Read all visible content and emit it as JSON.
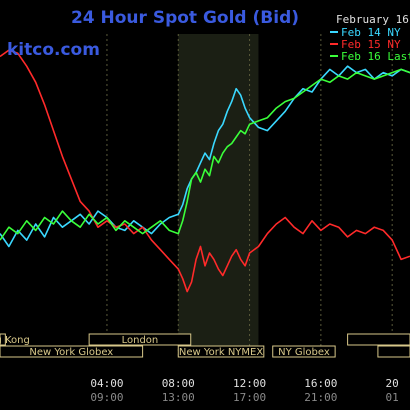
{
  "chart_data": {
    "type": "line",
    "title": "24 Hour Spot Gold (Bid)",
    "watermark": "kitco.com",
    "date_label": "February 16",
    "legend_position": "top-right",
    "x_ticks": [
      {
        "x": 4,
        "label": "04:00",
        "sublabel": "09:00"
      },
      {
        "x": 8,
        "label": "08:00",
        "sublabel": "13:00"
      },
      {
        "x": 12,
        "label": "12:00",
        "sublabel": "17:00"
      },
      {
        "x": 16,
        "label": "16:00",
        "sublabel": "21:00"
      },
      {
        "x": 20,
        "label": "20",
        "sublabel": "01"
      }
    ],
    "xlim": [
      -2,
      21
    ],
    "ylim": [
      0,
      100
    ],
    "shaded_range": [
      8,
      12.5
    ],
    "sessions": [
      {
        "label": "Hong Kong",
        "start": -2,
        "end": -1.7,
        "row": 1
      },
      {
        "label": "New York Globex",
        "start": -2,
        "end": 6,
        "row": 2
      },
      {
        "label": "London",
        "start": 3,
        "end": 8.7,
        "row": 1
      },
      {
        "label": "New York NYMEX",
        "start": 8,
        "end": 12.8,
        "row": 2
      },
      {
        "label": "NY Globex",
        "start": 13.3,
        "end": 16.8,
        "row": 2
      },
      {
        "label": "",
        "start": 17.5,
        "end": 21,
        "row": 1
      },
      {
        "label": "",
        "start": 19.2,
        "end": 21,
        "row": 2
      }
    ],
    "colors": {
      "background": "#000000",
      "plot_background": "#000000",
      "shaded": "#1b1f14",
      "grid": "#5a5a3a",
      "title": "#3a5adf",
      "axis_text": "#e0e0e0",
      "session_fill": "#000000",
      "session_border": "#d8c88a"
    },
    "series": [
      {
        "name": "Feb 14 NY",
        "color": "#3ad8ff",
        "x": [
          -2,
          -1.5,
          -1,
          -0.5,
          0,
          0.5,
          1,
          1.5,
          2,
          2.5,
          3,
          3.5,
          4,
          4.5,
          5,
          5.5,
          6,
          6.5,
          7,
          7.5,
          8,
          8.25,
          8.5,
          8.75,
          9,
          9.25,
          9.5,
          9.75,
          10,
          10.25,
          10.5,
          10.75,
          11,
          11.25,
          11.5,
          11.75,
          12,
          12.5,
          13,
          13.5,
          14,
          14.5,
          15,
          15.5,
          16,
          16.5,
          17,
          17.5,
          18,
          18.5,
          19,
          19.5,
          20,
          20.5,
          21
        ],
        "values": [
          38,
          34,
          39,
          36,
          41,
          37,
          43,
          40,
          42,
          44,
          41,
          45,
          43,
          40,
          39,
          42,
          40,
          38,
          41,
          43,
          44,
          47,
          52,
          55,
          57,
          60,
          63,
          61,
          66,
          70,
          72,
          76,
          79,
          83,
          81,
          77,
          74,
          71,
          70,
          73,
          76,
          80,
          83,
          82,
          86,
          89,
          87,
          90,
          88,
          89,
          86,
          88,
          87,
          89,
          88
        ]
      },
      {
        "name": "Feb 15 NY",
        "color": "#ff2a2a",
        "x": [
          -2,
          -1.5,
          -1,
          -0.5,
          0,
          0.5,
          1,
          1.5,
          2,
          2.5,
          3,
          3.5,
          4,
          4.5,
          5,
          5.5,
          6,
          6.5,
          7,
          7.5,
          8,
          8.25,
          8.5,
          8.75,
          9,
          9.25,
          9.5,
          9.75,
          10,
          10.25,
          10.5,
          10.75,
          11,
          11.25,
          11.5,
          11.75,
          12,
          12.5,
          13,
          13.5,
          14,
          14.5,
          15,
          15.5,
          16,
          16.5,
          17,
          17.5,
          18,
          18.5,
          19,
          19.5,
          20,
          20.5,
          21
        ],
        "values": [
          93,
          95,
          94,
          90,
          85,
          78,
          70,
          62,
          55,
          48,
          45,
          40,
          42,
          40,
          41,
          38,
          40,
          36,
          33,
          30,
          27,
          24,
          20,
          23,
          30,
          34,
          28,
          32,
          30,
          27,
          25,
          28,
          31,
          33,
          30,
          28,
          32,
          34,
          38,
          41,
          43,
          40,
          38,
          42,
          39,
          41,
          40,
          37,
          39,
          38,
          40,
          39,
          36,
          30,
          31
        ]
      },
      {
        "name": "Feb 16 Last",
        "color": "#3aff3a",
        "x": [
          -2,
          -1.5,
          -1,
          -0.5,
          0,
          0.5,
          1,
          1.5,
          2,
          2.5,
          3,
          3.5,
          4,
          4.5,
          5,
          5.5,
          6,
          6.5,
          7,
          7.5,
          8,
          8.25,
          8.5,
          8.75,
          9,
          9.25,
          9.5,
          9.75,
          10,
          10.25,
          10.5,
          10.75,
          11,
          11.25,
          11.5,
          11.75,
          12,
          12.5,
          13,
          13.5,
          14,
          14.5,
          15,
          15.5,
          16,
          16.5,
          17,
          17.5,
          18,
          18.5,
          19,
          19.5,
          20,
          20.5,
          21
        ],
        "values": [
          36,
          40,
          38,
          42,
          39,
          43,
          41,
          45,
          42,
          40,
          44,
          41,
          43,
          39,
          42,
          40,
          38,
          40,
          42,
          39,
          38,
          42,
          48,
          55,
          57,
          54,
          58,
          56,
          62,
          60,
          63,
          65,
          66,
          68,
          70,
          69,
          72,
          73,
          74,
          77,
          79,
          80,
          82,
          84,
          86,
          85,
          87,
          86,
          88,
          87,
          86,
          87,
          88,
          89,
          88
        ]
      }
    ]
  }
}
